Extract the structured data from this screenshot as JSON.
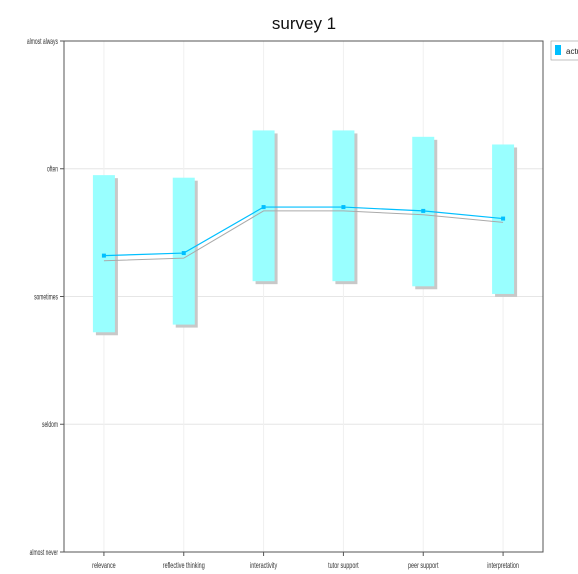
{
  "chart_data": {
    "type": "line",
    "title": "survey 1",
    "xlabel": "",
    "ylabel": "",
    "categories": [
      "relevance",
      "reflective thinking",
      "interactivity",
      "tutor support",
      "peer support",
      "interpretation"
    ],
    "y_ticks": [
      {
        "value": 1,
        "label": "almost never"
      },
      {
        "value": 2,
        "label": "seldom"
      },
      {
        "value": 3,
        "label": "sometimes"
      },
      {
        "value": 4,
        "label": "often"
      },
      {
        "value": 5,
        "label": "almost always"
      }
    ],
    "ylim": [
      1,
      5
    ],
    "grid": true,
    "legend_position": "top-right",
    "series": [
      {
        "name": "actu",
        "color": "#00bfff",
        "band_color": "#99ffff",
        "values": [
          3.32,
          3.34,
          3.7,
          3.7,
          3.67,
          3.61
        ],
        "band_low": [
          2.72,
          2.78,
          3.12,
          3.12,
          3.08,
          3.02
        ],
        "band_high": [
          3.95,
          3.93,
          4.3,
          4.3,
          4.25,
          4.19
        ]
      },
      {
        "name": "",
        "color": "#aaaaaa",
        "values": [
          3.28,
          3.3,
          3.67,
          3.67,
          3.64,
          3.58
        ]
      }
    ]
  }
}
